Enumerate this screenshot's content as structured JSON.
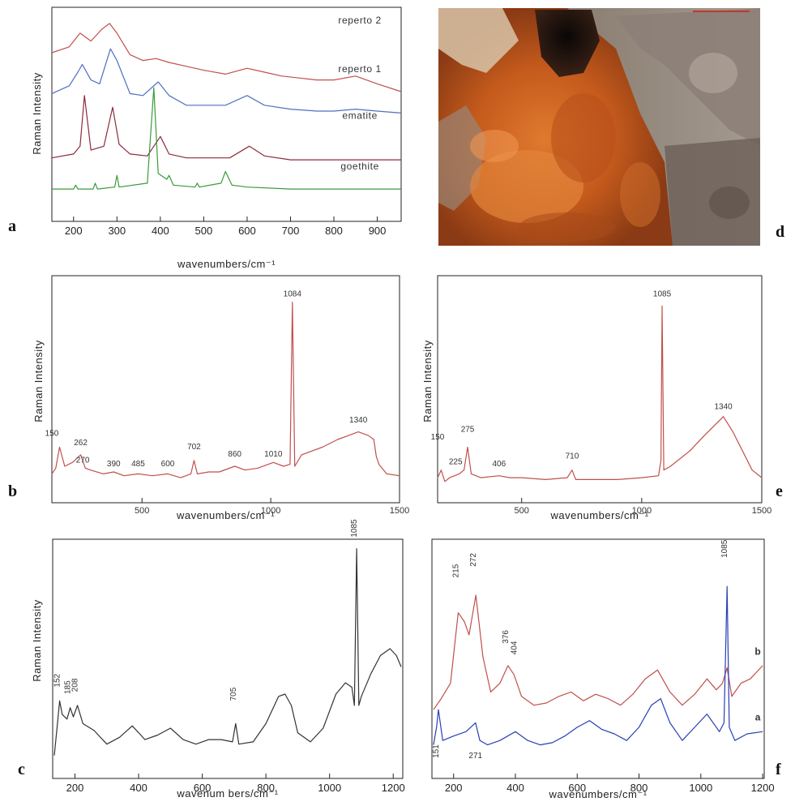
{
  "panel_letters": [
    "a",
    "b",
    "c",
    "d",
    "e",
    "f"
  ],
  "photo": {
    "description_colors": {
      "rust": "#c8621e",
      "dark": "#1a1210",
      "grey": "#8a8078",
      "light": "#d8c4a8"
    }
  },
  "chart_data": [
    {
      "panel": "a",
      "type": "line",
      "xlabel": "wavenumbers/cm⁻¹",
      "ylabel": "Raman Intensity",
      "xlim": [
        150,
        955
      ],
      "ylim": [
        0,
        100
      ],
      "xticks": [
        200,
        300,
        400,
        500,
        600,
        700,
        800,
        900
      ],
      "y_ticks_shown": false,
      "series": [
        {
          "name": "reperto 2",
          "color": "#c0504d",
          "x": [
            150,
            190,
            215,
            240,
            265,
            283,
            300,
            330,
            360,
            390,
            420,
            460,
            500,
            550,
            600,
            640,
            680,
            720,
            760,
            800,
            850,
            900,
            955
          ],
          "y": [
            80,
            83,
            90,
            86,
            92,
            95,
            90,
            79,
            76,
            77,
            75,
            73,
            71,
            69,
            72,
            70,
            68,
            67,
            66,
            66,
            68,
            64,
            60
          ]
        },
        {
          "name": "reperto 1",
          "color": "#4f6fc0",
          "x": [
            150,
            190,
            210,
            220,
            240,
            260,
            285,
            300,
            330,
            360,
            395,
            420,
            460,
            500,
            550,
            600,
            640,
            700,
            760,
            800,
            850,
            900,
            955
          ],
          "y": [
            59,
            63,
            70,
            74,
            66,
            64,
            82,
            76,
            59,
            58,
            65,
            58,
            53,
            53,
            53,
            58,
            53,
            51,
            50,
            50,
            51,
            50,
            49
          ]
        },
        {
          "name": "ematite",
          "color": "#8b2b3a",
          "x": [
            150,
            200,
            215,
            225,
            240,
            270,
            290,
            305,
            330,
            370,
            400,
            420,
            460,
            500,
            560,
            605,
            640,
            700,
            800,
            900,
            955
          ],
          "y": [
            26,
            28,
            32,
            58,
            30,
            32,
            52,
            33,
            28,
            27,
            37,
            28,
            26,
            26,
            26,
            32,
            27,
            25,
            25,
            25,
            25
          ]
        },
        {
          "name": "goethite",
          "color": "#3a9a3a",
          "x": [
            150,
            200,
            205,
            210,
            245,
            250,
            255,
            295,
            300,
            305,
            370,
            385,
            395,
            415,
            420,
            430,
            480,
            485,
            490,
            540,
            550,
            565,
            600,
            700,
            800,
            900,
            955
          ],
          "y": [
            10,
            10,
            12,
            10,
            10,
            13,
            10,
            11,
            17,
            11,
            13,
            62,
            18,
            15,
            17,
            12,
            11,
            13,
            11,
            13,
            19,
            12,
            11,
            10,
            10,
            10,
            10
          ]
        }
      ]
    },
    {
      "panel": "b",
      "type": "line",
      "xlabel": "wavenumbers/cm⁻¹",
      "ylabel": "Raman Intensity",
      "xlim": [
        150,
        1500
      ],
      "ylim": [
        0,
        100
      ],
      "xticks": [
        500,
        1000,
        1500
      ],
      "annotations": [
        "150",
        "262",
        "270",
        "390",
        "485",
        "600",
        "702",
        "860",
        "1010",
        "1084",
        "1340"
      ],
      "series": [
        {
          "name": "",
          "color": "#c0504d",
          "x": [
            150,
            165,
            180,
            200,
            230,
            262,
            280,
            300,
            350,
            390,
            430,
            485,
            540,
            600,
            650,
            690,
            702,
            715,
            760,
            800,
            860,
            900,
            950,
            1010,
            1050,
            1075,
            1084,
            1093,
            1120,
            1200,
            1260,
            1300,
            1340,
            1380,
            1400,
            1410,
            1420,
            1450,
            1500
          ],
          "y": [
            8,
            11,
            22,
            12,
            14,
            18,
            11,
            10,
            8,
            9,
            7,
            8,
            7,
            8,
            6,
            8,
            15,
            8,
            9,
            9,
            12,
            10,
            11,
            14,
            12,
            13,
            98,
            12,
            18,
            22,
            26,
            28,
            30,
            28,
            26,
            17,
            13,
            8,
            7
          ]
        }
      ]
    },
    {
      "panel": "c",
      "type": "line",
      "xlabel": "wavenum bers/cm⁻¹",
      "ylabel": "Raman Intensity",
      "xlim": [
        130,
        1230
      ],
      "ylim": [
        0,
        100
      ],
      "xticks": [
        200,
        400,
        600,
        800,
        1000,
        1200
      ],
      "annotations": [
        "152",
        "185",
        "208",
        "705",
        "1085"
      ],
      "series": [
        {
          "name": "",
          "color": "#333333",
          "x": [
            135,
            145,
            152,
            160,
            175,
            185,
            195,
            208,
            225,
            260,
            300,
            340,
            380,
            420,
            460,
            500,
            540,
            580,
            620,
            660,
            695,
            705,
            715,
            760,
            800,
            840,
            860,
            880,
            900,
            940,
            980,
            1020,
            1050,
            1070,
            1078,
            1085,
            1092,
            1100,
            1130,
            1160,
            1190,
            1210,
            1225
          ],
          "y": [
            8,
            22,
            32,
            26,
            24,
            29,
            25,
            30,
            22,
            19,
            13,
            16,
            21,
            15,
            17,
            20,
            15,
            13,
            15,
            15,
            14,
            22,
            13,
            14,
            22,
            34,
            35,
            30,
            18,
            14,
            20,
            35,
            40,
            38,
            30,
            99,
            30,
            34,
            44,
            52,
            55,
            52,
            47
          ]
        }
      ]
    },
    {
      "panel": "e",
      "type": "line",
      "xlabel": "wavenumbers/cm⁻¹",
      "ylabel": "Raman Intensity",
      "xlim": [
        150,
        1500
      ],
      "ylim": [
        0,
        100
      ],
      "xticks": [
        500,
        1000,
        1500
      ],
      "annotations": [
        "150",
        "225",
        "275",
        "406",
        "710",
        "1085",
        "1340"
      ],
      "series": [
        {
          "name": "",
          "color": "#c0504d",
          "x": [
            150,
            165,
            180,
            200,
            240,
            260,
            275,
            290,
            330,
            406,
            450,
            500,
            600,
            690,
            710,
            725,
            800,
            900,
            1000,
            1070,
            1080,
            1085,
            1092,
            1120,
            1200,
            1260,
            1300,
            1340,
            1380,
            1420,
            1460,
            1500
          ],
          "y": [
            6,
            10,
            4,
            6,
            8,
            10,
            22,
            8,
            6,
            7,
            6,
            6,
            5,
            6,
            10,
            5,
            5,
            5,
            6,
            7,
            15,
            96,
            10,
            12,
            20,
            28,
            33,
            38,
            30,
            20,
            10,
            6
          ]
        }
      ]
    },
    {
      "panel": "f",
      "type": "line",
      "xlabel": "wavenumbers/cm⁻¹",
      "ylabel": "",
      "xlim": [
        130,
        1205
      ],
      "ylim": [
        0,
        100
      ],
      "xticks": [
        200,
        400,
        600,
        800,
        1000,
        1200
      ],
      "annotations": [
        "215",
        "272",
        "376",
        "404",
        "1085",
        "151",
        "271"
      ],
      "series": [
        {
          "name": "b",
          "color": "#c0504d",
          "x": [
            135,
            160,
            190,
            215,
            235,
            250,
            272,
            295,
            320,
            350,
            376,
            395,
            420,
            460,
            500,
            540,
            580,
            620,
            660,
            700,
            740,
            780,
            820,
            860,
            900,
            940,
            980,
            1020,
            1050,
            1070,
            1085,
            1100,
            1130,
            1160,
            1200
          ],
          "y": [
            28,
            33,
            40,
            72,
            68,
            62,
            80,
            52,
            36,
            40,
            48,
            44,
            34,
            30,
            31,
            34,
            36,
            32,
            35,
            33,
            30,
            35,
            42,
            46,
            36,
            30,
            35,
            42,
            37,
            40,
            47,
            34,
            40,
            42,
            48
          ]
        },
        {
          "name": "a",
          "color": "#2a3fb5",
          "x": [
            135,
            145,
            151,
            165,
            200,
            240,
            271,
            285,
            310,
            350,
            400,
            440,
            480,
            520,
            560,
            600,
            640,
            680,
            720,
            760,
            800,
            840,
            870,
            900,
            940,
            980,
            1020,
            1060,
            1075,
            1085,
            1092,
            1110,
            1150,
            1200
          ],
          "y": [
            12,
            20,
            28,
            14,
            16,
            18,
            22,
            14,
            12,
            14,
            18,
            14,
            12,
            13,
            16,
            20,
            23,
            19,
            17,
            14,
            20,
            30,
            33,
            22,
            14,
            20,
            26,
            18,
            22,
            84,
            20,
            14,
            17,
            18
          ]
        }
      ]
    }
  ]
}
